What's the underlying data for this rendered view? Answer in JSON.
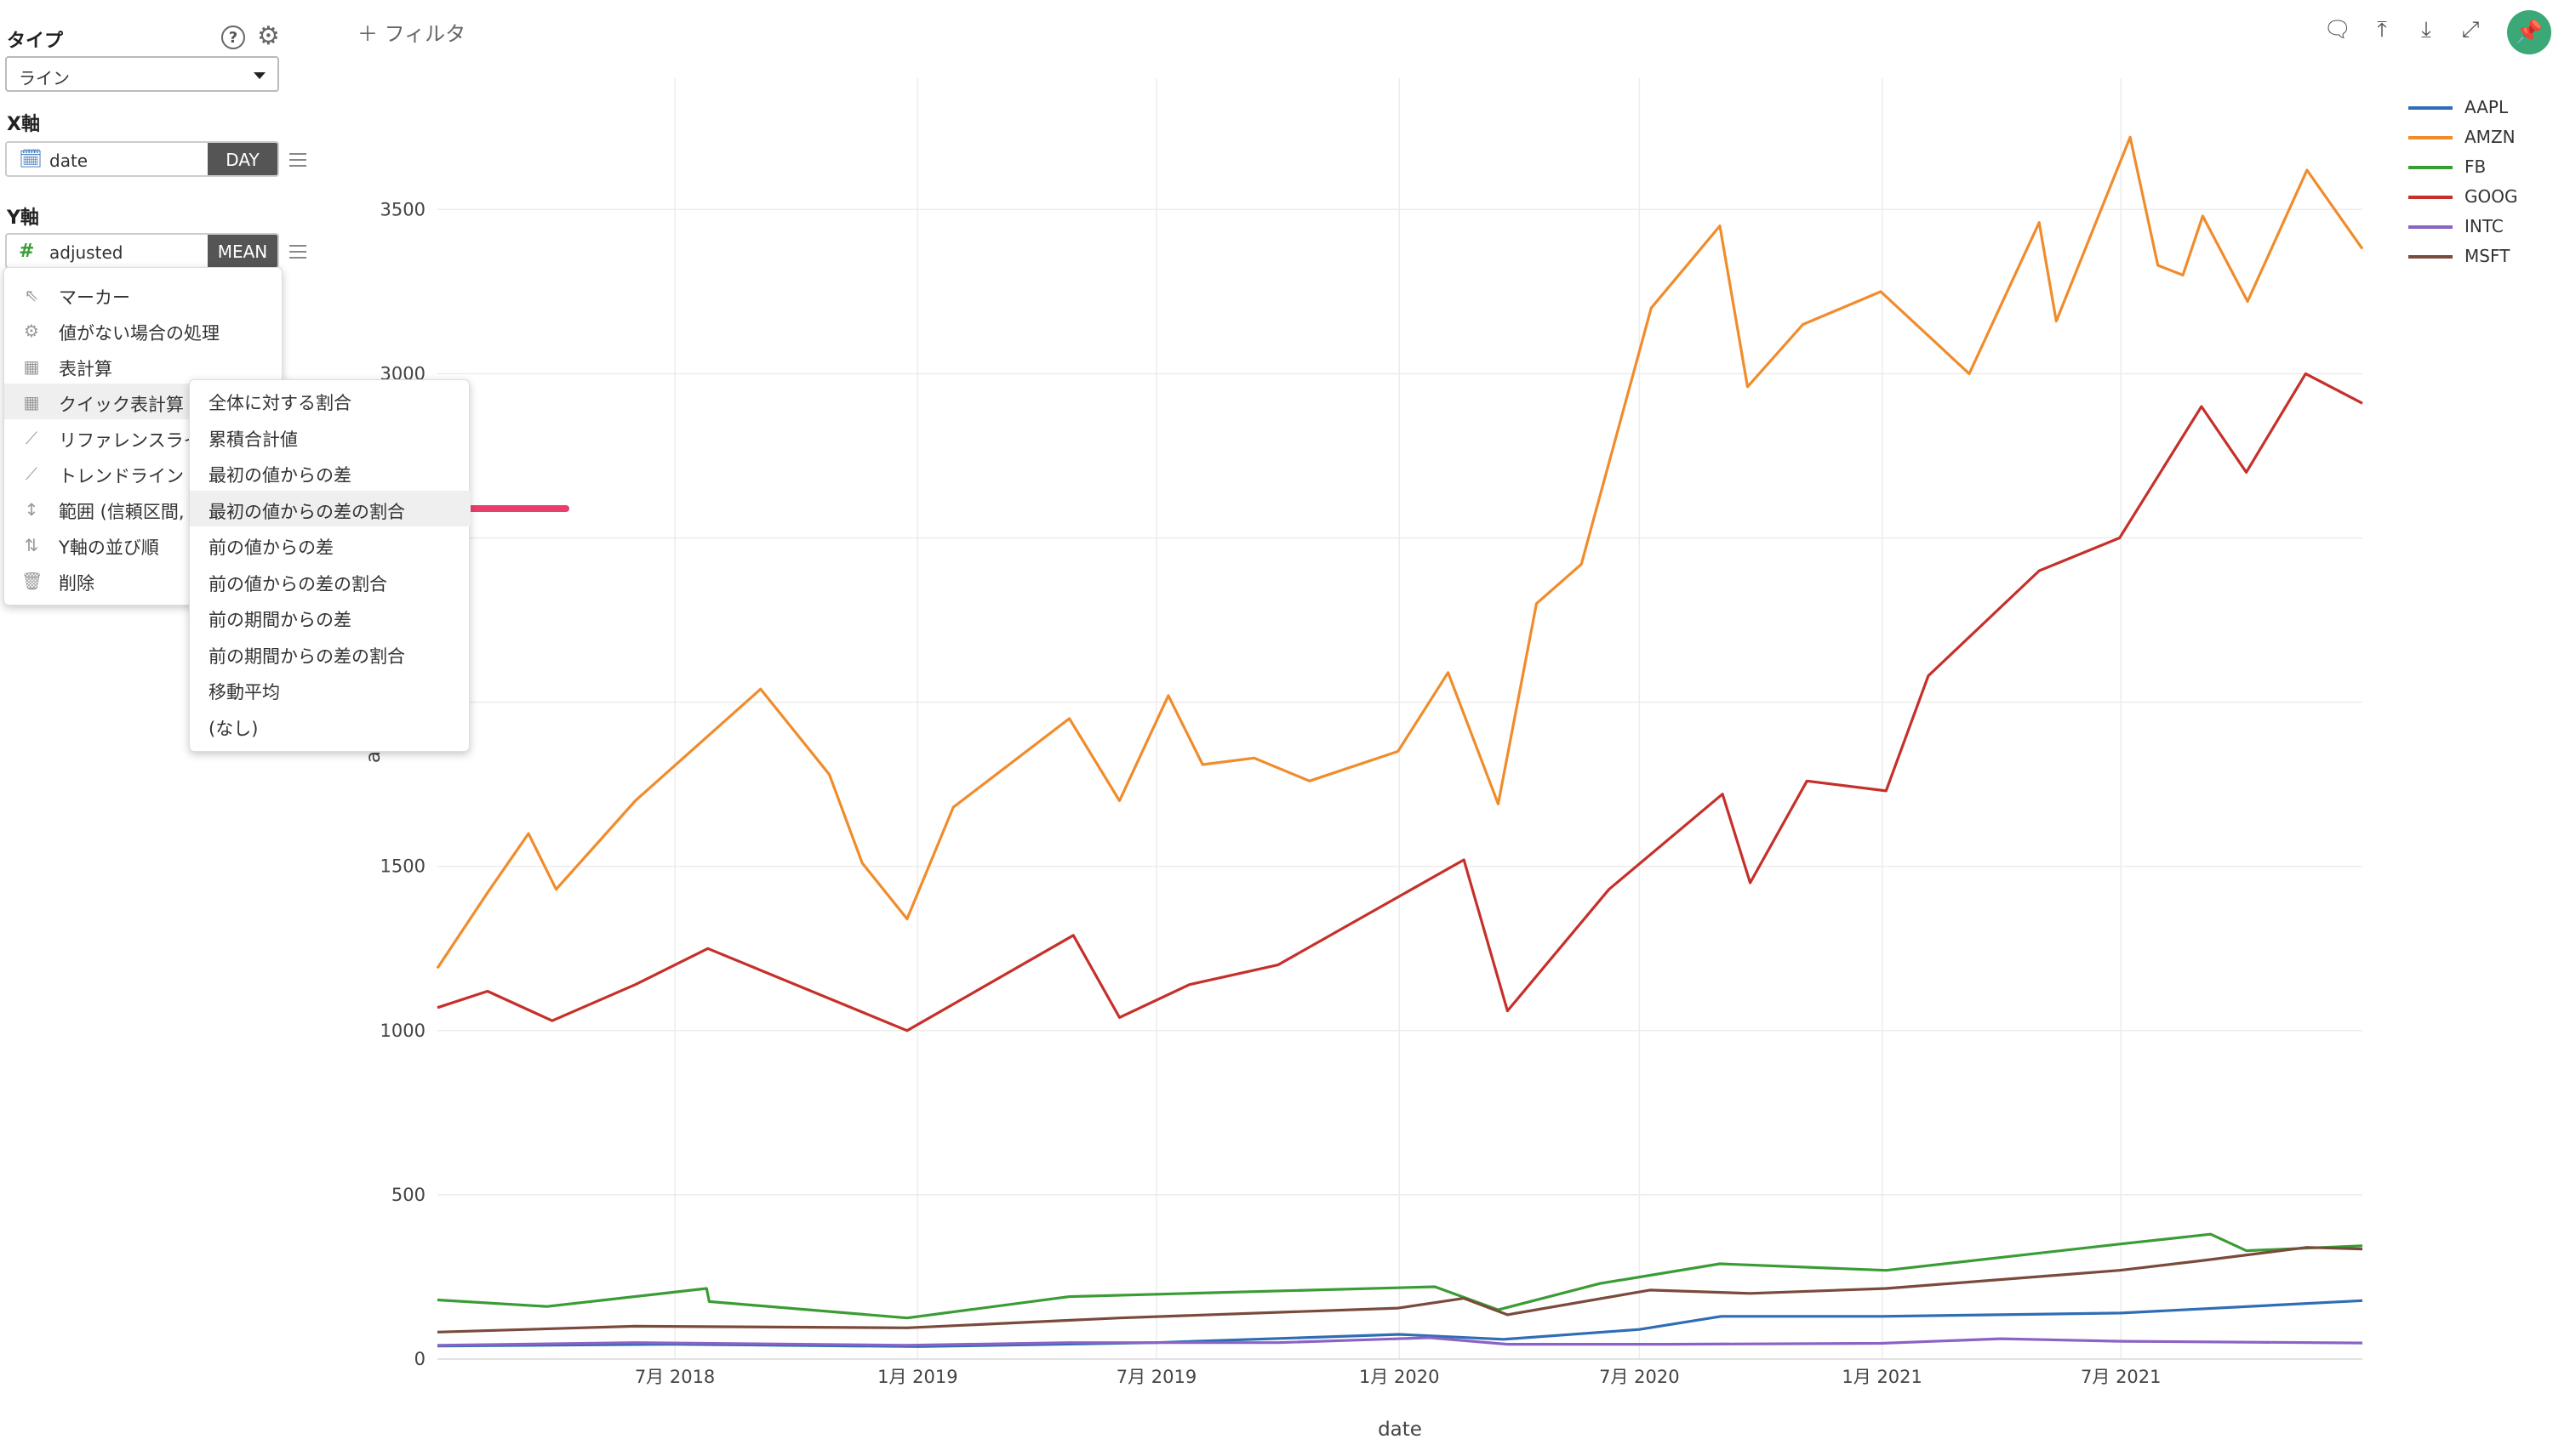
{
  "panel": {
    "type_label": "タイプ",
    "help_icon": "?",
    "type_value": "ライン",
    "x_label": "X軸",
    "x_field": "date",
    "x_agg": "DAY",
    "y_label": "Y軸",
    "y_field": "adjusted",
    "y_agg": "MEAN"
  },
  "menu": {
    "items": [
      {
        "label": "マーカー",
        "icon": "cursor-icon",
        "glyph": "⇖"
      },
      {
        "label": "値がない場合の処理",
        "icon": "gear-icon",
        "glyph": "⚙"
      },
      {
        "label": "表計算",
        "icon": "table-icon",
        "glyph": "▦"
      },
      {
        "label": "クイック表計算",
        "icon": "table-icon",
        "glyph": "▦"
      },
      {
        "label": "リファレンスライ",
        "icon": "chart-icon",
        "glyph": "⟋"
      },
      {
        "label": "トレンドライン",
        "icon": "chart-icon",
        "glyph": "⟋"
      },
      {
        "label": "範囲 (信頼区間,",
        "icon": "range-icon",
        "glyph": "↕"
      },
      {
        "label": "Y軸の並び順",
        "icon": "sort-icon",
        "glyph": "⇅"
      },
      {
        "label": "削除",
        "icon": "trash-icon",
        "glyph": "🗑"
      }
    ],
    "submenu": [
      "全体に対する割合",
      "累積合計値",
      "最初の値からの差",
      "最初の値からの差の割合",
      "前の値からの差",
      "前の値からの差の割合",
      "前の期間からの差",
      "前の期間からの差の割合",
      "移動平均",
      "(なし)"
    ]
  },
  "toolbar": {
    "filter_label": "＋ フィルタ"
  },
  "colors": {
    "AAPL": "#2f6db5",
    "AMZN": "#f08c2b",
    "FB": "#3a9c34",
    "GOOG": "#c6302b",
    "INTC": "#8a63c4",
    "MSFT": "#7a4a3c",
    "accent_arrow": "#e83e6b"
  },
  "chart_data": {
    "type": "line",
    "title": "",
    "xlabel": "date",
    "ylabel": "a",
    "ylim": [
      0,
      3700
    ],
    "yticks": [
      0,
      500,
      1000,
      1500,
      3000,
      3500
    ],
    "xlim": [
      "2018-01-02",
      "2021-12-31"
    ],
    "xticks": [
      {
        "date": "2018-07-01",
        "label": "7月 2018"
      },
      {
        "date": "2019-01-01",
        "label": "1月 2019"
      },
      {
        "date": "2019-07-01",
        "label": "7月 2019"
      },
      {
        "date": "2020-01-01",
        "label": "1月 2020"
      },
      {
        "date": "2020-07-01",
        "label": "7月 2020"
      },
      {
        "date": "2021-01-01",
        "label": "1月 2021"
      },
      {
        "date": "2021-07-01",
        "label": "7月 2021"
      }
    ],
    "legend_position": "top-right",
    "grid": true,
    "series": [
      {
        "name": "AAPL",
        "x": [
          "2018-01-02",
          "2018-07-01",
          "2019-01-01",
          "2019-07-01",
          "2020-01-01",
          "2020-03-20",
          "2020-07-01",
          "2020-09-01",
          "2021-01-01",
          "2021-07-01",
          "2021-12-31"
        ],
        "values": [
          40,
          45,
          38,
          50,
          75,
          60,
          90,
          130,
          130,
          140,
          178
        ]
      },
      {
        "name": "AMZN",
        "x": [
          "2018-01-02",
          "2018-02-09",
          "2018-03-12",
          "2018-04-02",
          "2018-06-01",
          "2018-09-04",
          "2018-10-26",
          "2018-11-20",
          "2018-12-24",
          "2019-01-28",
          "2019-04-26",
          "2019-06-03",
          "2019-07-10",
          "2019-08-05",
          "2019-09-13",
          "2019-10-25",
          "2019-12-31",
          "2020-02-07",
          "2020-03-16",
          "2020-04-14",
          "2020-05-18",
          "2020-07-10",
          "2020-08-31",
          "2020-09-21",
          "2020-11-02",
          "2020-12-31",
          "2021-03-08",
          "2021-04-30",
          "2021-05-13",
          "2021-07-08",
          "2021-07-29",
          "2021-08-17",
          "2021-09-01",
          "2021-10-05",
          "2021-11-19",
          "2021-12-31"
        ],
        "values": [
          1190,
          1420,
          1600,
          1430,
          1700,
          2040,
          1780,
          1510,
          1340,
          1680,
          1950,
          1700,
          2020,
          1810,
          1830,
          1760,
          1850,
          2090,
          1690,
          2300,
          2420,
          3200,
          3450,
          2960,
          3150,
          3250,
          3000,
          3460,
          3160,
          3720,
          3330,
          3300,
          3480,
          3220,
          3620,
          3380
        ]
      },
      {
        "name": "FB",
        "x": [
          "2018-01-02",
          "2018-03-26",
          "2018-07-25",
          "2018-07-27",
          "2018-12-24",
          "2019-04-26",
          "2019-07-25",
          "2020-01-28",
          "2020-03-16",
          "2020-06-01",
          "2020-08-31",
          "2021-01-04",
          "2021-06-30",
          "2021-09-07",
          "2021-10-04",
          "2021-12-31"
        ],
        "values": [
          180,
          160,
          215,
          175,
          125,
          190,
          200,
          220,
          150,
          230,
          290,
          270,
          350,
          380,
          330,
          345
        ]
      },
      {
        "name": "GOOG",
        "x": [
          "2018-01-02",
          "2018-02-09",
          "2018-03-30",
          "2018-06-01",
          "2018-07-26",
          "2018-12-24",
          "2019-04-29",
          "2019-06-03",
          "2019-07-26",
          "2019-10-01",
          "2020-02-19",
          "2020-03-23",
          "2020-06-08",
          "2020-09-02",
          "2020-09-23",
          "2020-11-05",
          "2021-01-04",
          "2021-02-05",
          "2021-04-30",
          "2021-06-30",
          "2021-08-31",
          "2021-10-04",
          "2021-11-18",
          "2021-12-31"
        ],
        "values": [
          1070,
          1120,
          1030,
          1140,
          1250,
          1000,
          1290,
          1040,
          1140,
          1200,
          1520,
          1060,
          1430,
          1720,
          1450,
          1760,
          1730,
          2080,
          2400,
          2500,
          2900,
          2700,
          3000,
          2910
        ]
      },
      {
        "name": "INTC",
        "x": [
          "2018-01-02",
          "2018-06-01",
          "2018-12-24",
          "2019-04-26",
          "2019-10-01",
          "2020-01-24",
          "2020-03-23",
          "2020-07-24",
          "2020-12-31",
          "2021-04-01",
          "2021-07-01",
          "2021-12-31"
        ],
        "values": [
          42,
          50,
          42,
          50,
          50,
          65,
          45,
          45,
          48,
          62,
          54,
          49
        ]
      },
      {
        "name": "MSFT",
        "x": [
          "2018-01-02",
          "2018-06-01",
          "2018-12-24",
          "2019-06-03",
          "2019-12-31",
          "2020-02-19",
          "2020-03-23",
          "2020-07-09",
          "2020-09-23",
          "2021-01-04",
          "2021-06-30",
          "2021-09-01",
          "2021-11-19",
          "2021-12-31"
        ],
        "values": [
          82,
          100,
          95,
          125,
          155,
          185,
          135,
          210,
          200,
          215,
          270,
          300,
          340,
          335
        ]
      }
    ]
  }
}
